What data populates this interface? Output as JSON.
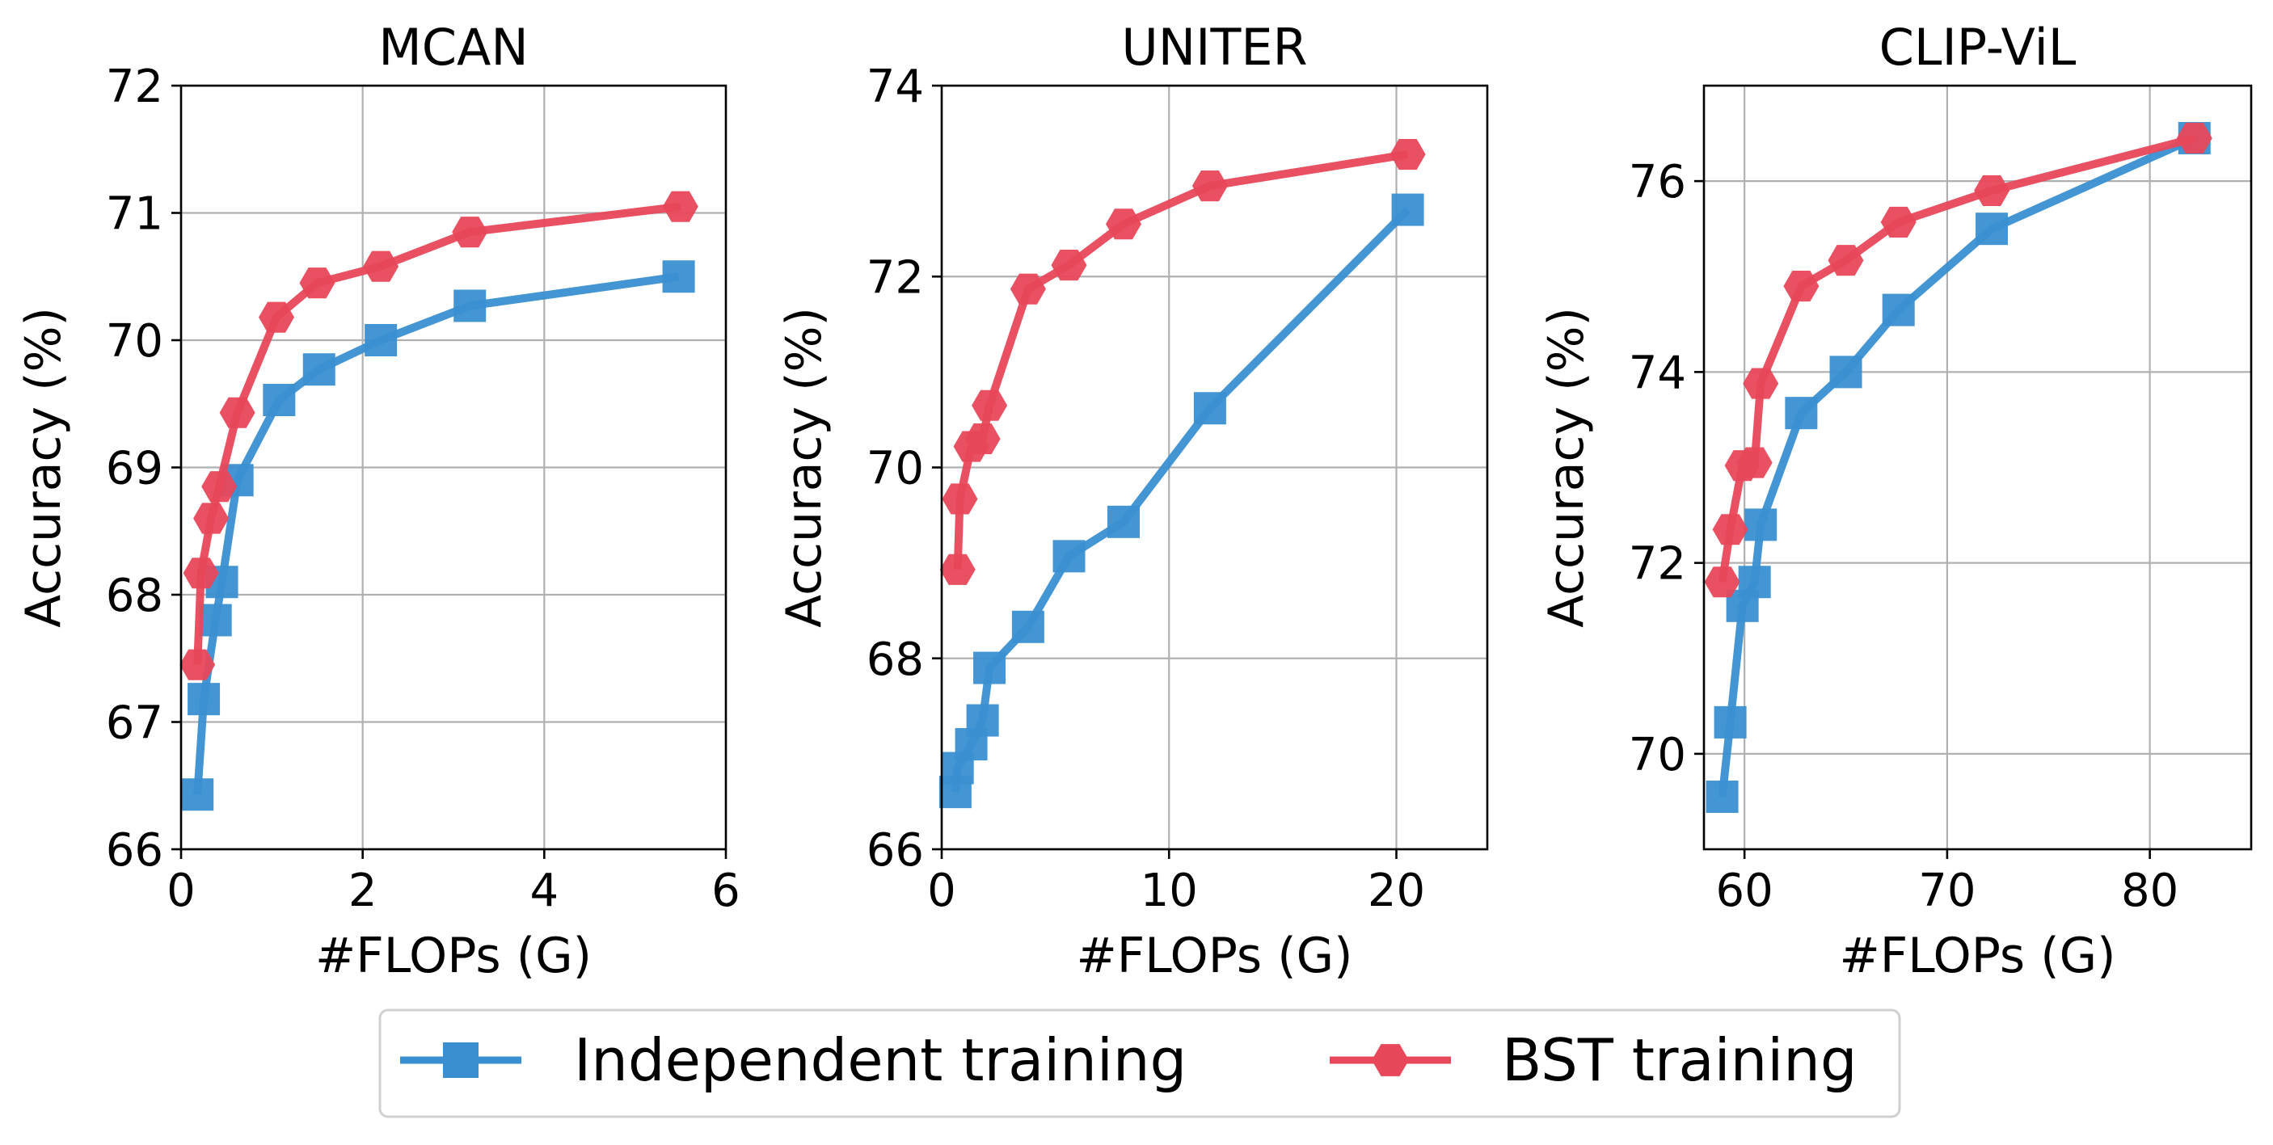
{
  "legend": {
    "items": [
      {
        "label": "Independent training",
        "color": "#3a8fd1",
        "marker": "square"
      },
      {
        "label": "BST training",
        "color": "#e8475a",
        "marker": "hexagon"
      }
    ]
  },
  "chart_data": [
    {
      "type": "line",
      "title": "MCAN",
      "xlabel": "#FLOPs (G)",
      "ylabel": "Accuracy (%)",
      "xlim": [
        0,
        6
      ],
      "ylim": [
        66,
        72
      ],
      "xticks": [
        0,
        2,
        4,
        6
      ],
      "yticks": [
        66,
        67,
        68,
        69,
        70,
        71,
        72
      ],
      "grid": true,
      "series": [
        {
          "name": "Independent training",
          "color": "#3a8fd1",
          "marker": "square",
          "x": [
            0.18,
            0.25,
            0.38,
            0.45,
            0.62,
            1.08,
            1.52,
            2.2,
            3.18,
            5.48
          ],
          "y": [
            66.43,
            67.18,
            67.8,
            68.1,
            68.9,
            69.53,
            69.77,
            70.0,
            70.27,
            70.5
          ]
        },
        {
          "name": "BST training",
          "color": "#e8475a",
          "marker": "hexagon",
          "x": [
            0.18,
            0.22,
            0.33,
            0.42,
            0.62,
            1.05,
            1.5,
            2.2,
            3.18,
            5.5
          ],
          "y": [
            67.45,
            68.17,
            68.6,
            68.85,
            69.43,
            70.18,
            70.45,
            70.58,
            70.85,
            71.05
          ]
        }
      ]
    },
    {
      "type": "line",
      "title": "UNITER",
      "xlabel": "#FLOPs (G)",
      "ylabel": "Accuracy (%)",
      "xlim": [
        0,
        24
      ],
      "ylim": [
        66,
        74
      ],
      "xticks": [
        0,
        10,
        20
      ],
      "yticks": [
        66,
        68,
        70,
        72,
        74
      ],
      "grid": true,
      "series": [
        {
          "name": "Independent training",
          "color": "#3a8fd1",
          "marker": "square",
          "x": [
            0.6,
            0.7,
            1.3,
            1.8,
            2.1,
            3.8,
            5.6,
            8.0,
            11.8,
            20.5
          ],
          "y": [
            66.6,
            66.85,
            67.1,
            67.35,
            67.9,
            68.33,
            69.07,
            69.43,
            70.62,
            72.7
          ]
        },
        {
          "name": "BST training",
          "color": "#e8475a",
          "marker": "hexagon",
          "x": [
            0.7,
            0.8,
            1.3,
            1.8,
            2.1,
            3.8,
            5.6,
            8.0,
            11.8,
            20.5
          ],
          "y": [
            68.93,
            69.67,
            70.22,
            70.3,
            70.65,
            71.87,
            72.12,
            72.55,
            72.95,
            73.28
          ]
        }
      ]
    },
    {
      "type": "line",
      "title": "CLIP-ViL",
      "xlabel": "#FLOPs (G)",
      "ylabel": "Accuracy (%)",
      "xlim": [
        58,
        85
      ],
      "ylim": [
        69,
        77
      ],
      "xticks": [
        60,
        70,
        80
      ],
      "yticks": [
        70,
        72,
        74,
        76
      ],
      "grid": true,
      "series": [
        {
          "name": "Independent training",
          "color": "#3a8fd1",
          "marker": "square",
          "x": [
            58.9,
            59.3,
            59.9,
            60.5,
            60.8,
            62.8,
            65.0,
            67.6,
            72.2,
            82.2
          ],
          "y": [
            69.55,
            70.33,
            71.55,
            71.8,
            72.4,
            73.57,
            74.0,
            74.65,
            75.5,
            76.45
          ]
        },
        {
          "name": "BST training",
          "color": "#e8475a",
          "marker": "hexagon",
          "x": [
            58.9,
            59.3,
            59.9,
            60.5,
            60.8,
            62.8,
            65.0,
            67.6,
            72.2,
            82.2
          ],
          "y": [
            71.8,
            72.35,
            73.02,
            73.05,
            73.88,
            74.9,
            75.17,
            75.57,
            75.9,
            76.45
          ]
        }
      ]
    }
  ]
}
